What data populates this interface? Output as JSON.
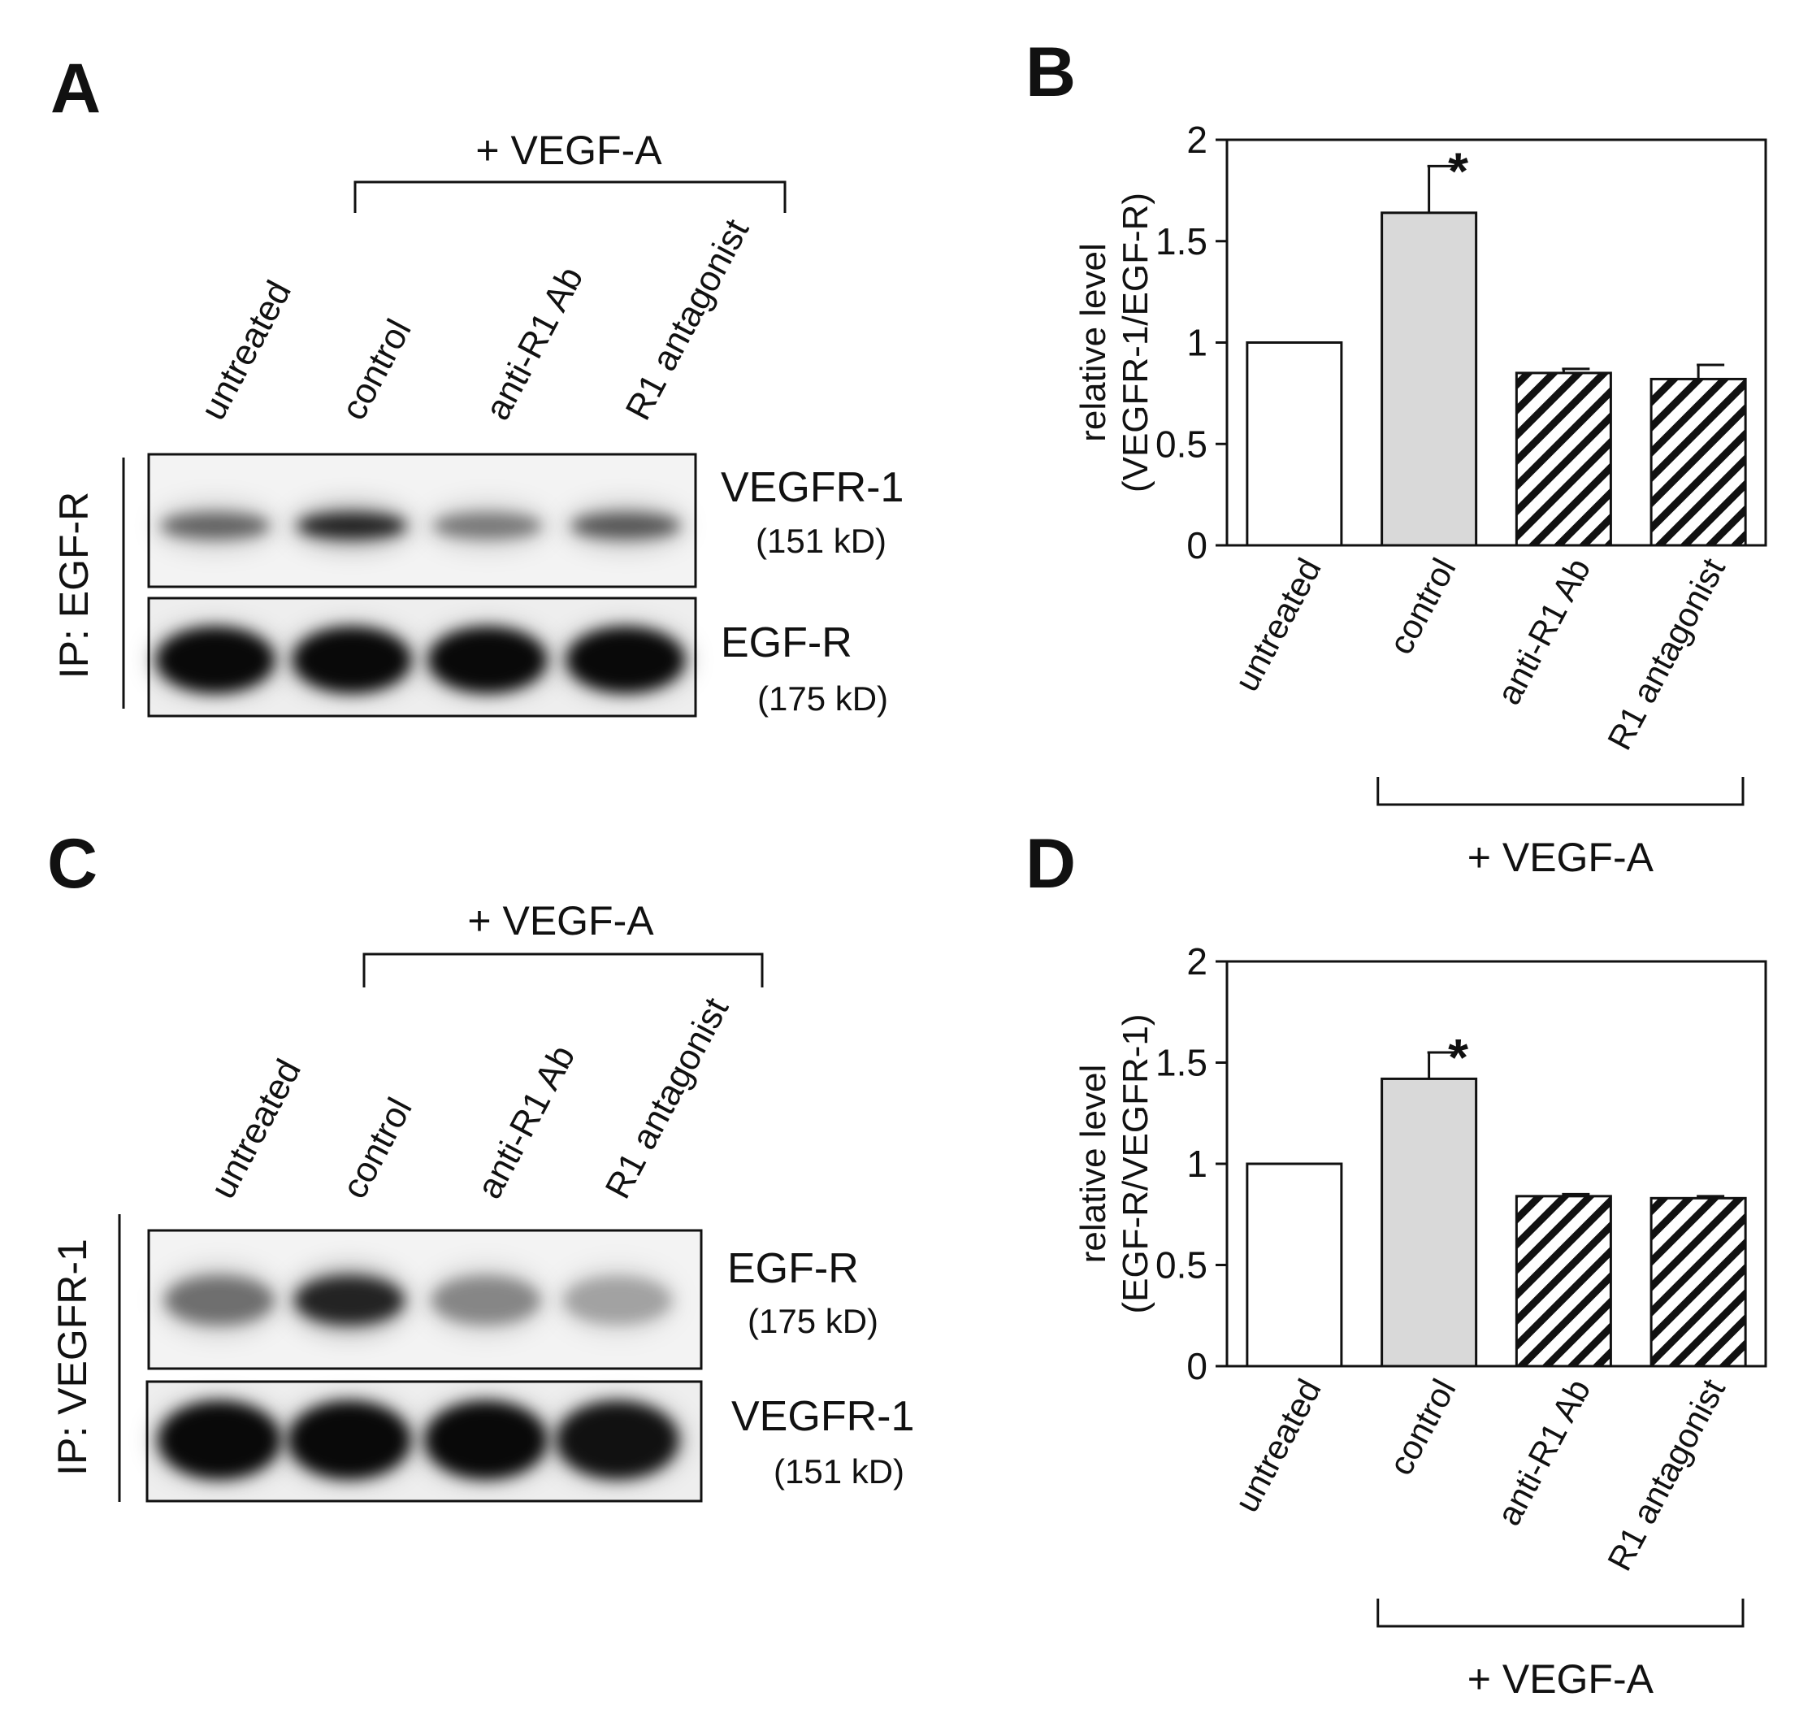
{
  "panel_labels": {
    "A": "A",
    "B": "B",
    "C": "C",
    "D": "D"
  },
  "blots": [
    {
      "id": "A",
      "treatment_label": "+ VEGF-A",
      "lanes": [
        "untreated",
        "control",
        "anti-R1 Ab",
        "R1 antagonist"
      ],
      "ip_label": "IP: EGF-R",
      "rows": [
        {
          "band": "VEGFR-1",
          "kd": "(151 kD)",
          "intensity": [
            0.55,
            0.85,
            0.45,
            0.6
          ]
        },
        {
          "band": "EGF-R",
          "kd": "(175 kD)",
          "intensity": [
            1.0,
            1.0,
            1.0,
            1.0
          ]
        }
      ]
    },
    {
      "id": "C",
      "treatment_label": "+ VEGF-A",
      "lanes": [
        "untreated",
        "control",
        "anti-R1 Ab",
        "R1 antagonist"
      ],
      "ip_label": "IP: VEGFR-1",
      "rows": [
        {
          "band": "EGF-R",
          "kd": "(175 kD)",
          "intensity": [
            0.5,
            0.85,
            0.4,
            0.3
          ]
        },
        {
          "band": "VEGFR-1",
          "kd": "(151 kD)",
          "intensity": [
            1.0,
            1.0,
            1.0,
            0.95
          ]
        }
      ]
    }
  ],
  "chart_data": [
    {
      "id": "B",
      "type": "bar",
      "categories": [
        "untreated",
        "control",
        "anti-R1 Ab",
        "R1 antagonist"
      ],
      "values": [
        1.0,
        1.64,
        0.85,
        0.82
      ],
      "errors": [
        0.0,
        0.23,
        0.02,
        0.07
      ],
      "fills": [
        "white",
        "gray",
        "hatch",
        "hatch"
      ],
      "significance": [
        "",
        "*",
        "",
        ""
      ],
      "ylabel_lines": [
        "relative level",
        "(VEGFR-1/EGF-R)"
      ],
      "ylim": [
        0,
        2
      ],
      "yticks": [
        "0",
        "0.5",
        "1",
        "1.5",
        "2"
      ],
      "group_label": "+ VEGF-A",
      "colors": {
        "gray": "#d9d9d9",
        "stroke": "#111111"
      }
    },
    {
      "id": "D",
      "type": "bar",
      "categories": [
        "untreated",
        "control",
        "anti-R1 Ab",
        "R1 antagonist"
      ],
      "values": [
        1.0,
        1.42,
        0.84,
        0.83
      ],
      "errors": [
        0.0,
        0.13,
        0.01,
        0.01
      ],
      "fills": [
        "white",
        "gray",
        "hatch",
        "hatch"
      ],
      "significance": [
        "",
        "*",
        "",
        ""
      ],
      "ylabel_lines": [
        "relative level",
        "(EGF-R/VEGFR-1)"
      ],
      "ylim": [
        0,
        2
      ],
      "yticks": [
        "0",
        "0.5",
        "1",
        "1.5",
        "2"
      ],
      "group_label": "+ VEGF-A",
      "colors": {
        "gray": "#d9d9d9",
        "stroke": "#111111"
      }
    }
  ]
}
